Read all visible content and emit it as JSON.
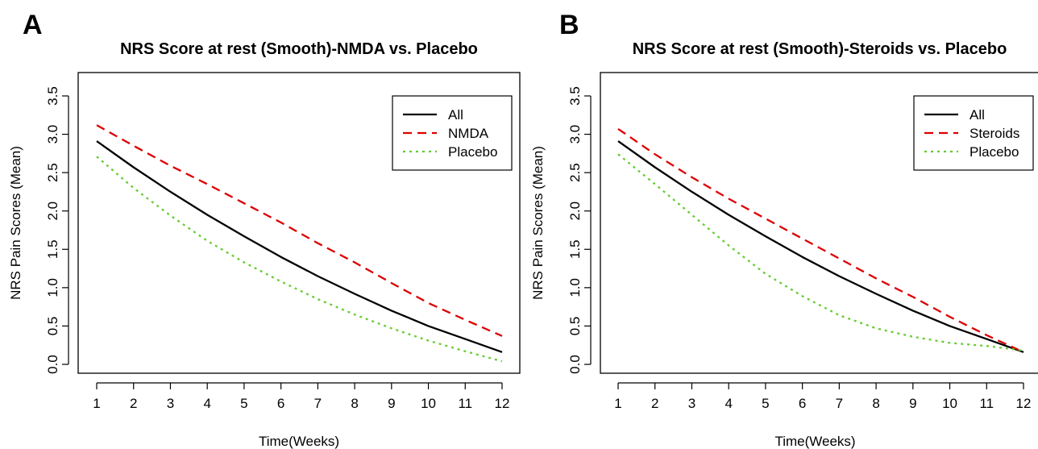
{
  "chart_data": [
    {
      "type": "line",
      "panel": "A",
      "title": "NRS Score at rest (Smooth)-NMDA vs. Placebo",
      "xlabel": "Time(Weeks)",
      "ylabel": "NRS Pain Scores (Mean)",
      "x": [
        1,
        2,
        3,
        4,
        5,
        6,
        7,
        8,
        9,
        10,
        11,
        12
      ],
      "xticks": [
        "1",
        "2",
        "3",
        "4",
        "5",
        "6",
        "7",
        "8",
        "9",
        "10",
        "11",
        "12"
      ],
      "yticks": [
        "0.0",
        "0.5",
        "1.0",
        "1.5",
        "2.0",
        "2.5",
        "3.0",
        "3.5"
      ],
      "ylim": [
        0,
        3.5
      ],
      "legend_position": "top-right",
      "series": [
        {
          "name": "All",
          "color": "#000000",
          "dash": "solid",
          "values": [
            2.91,
            2.57,
            2.25,
            1.95,
            1.67,
            1.4,
            1.15,
            0.92,
            0.7,
            0.5,
            0.33,
            0.16
          ]
        },
        {
          "name": "NMDA",
          "color": "#dd0000",
          "dash": "dashed",
          "values": [
            3.12,
            2.85,
            2.59,
            2.35,
            2.1,
            1.85,
            1.58,
            1.33,
            1.06,
            0.8,
            0.58,
            0.37
          ]
        },
        {
          "name": "Placebo",
          "color": "#66cc33",
          "dash": "dotted",
          "values": [
            2.71,
            2.3,
            1.94,
            1.61,
            1.33,
            1.08,
            0.85,
            0.65,
            0.47,
            0.31,
            0.17,
            0.04
          ]
        }
      ]
    },
    {
      "type": "line",
      "panel": "B",
      "title": "NRS Score at rest (Smooth)-Steroids vs. Placebo",
      "xlabel": "Time(Weeks)",
      "ylabel": "NRS Pain Scores (Mean)",
      "x": [
        1,
        2,
        3,
        4,
        5,
        6,
        7,
        8,
        9,
        10,
        11,
        12
      ],
      "xticks": [
        "1",
        "2",
        "3",
        "4",
        "5",
        "6",
        "7",
        "8",
        "9",
        "10",
        "11",
        "12"
      ],
      "yticks": [
        "0.0",
        "0.5",
        "1.0",
        "1.5",
        "2.0",
        "2.5",
        "3.0",
        "3.5"
      ],
      "ylim": [
        0,
        3.5
      ],
      "legend_position": "top-right",
      "series": [
        {
          "name": "All",
          "color": "#000000",
          "dash": "solid",
          "values": [
            2.91,
            2.57,
            2.25,
            1.95,
            1.67,
            1.4,
            1.15,
            0.92,
            0.7,
            0.5,
            0.33,
            0.16
          ]
        },
        {
          "name": "Steroids",
          "color": "#dd0000",
          "dash": "dashed",
          "values": [
            3.07,
            2.74,
            2.44,
            2.16,
            1.9,
            1.64,
            1.38,
            1.12,
            0.88,
            0.62,
            0.38,
            0.16
          ]
        },
        {
          "name": "Placebo",
          "color": "#66cc33",
          "dash": "dotted",
          "values": [
            2.74,
            2.35,
            1.95,
            1.55,
            1.18,
            0.89,
            0.64,
            0.47,
            0.36,
            0.28,
            0.24,
            0.18
          ]
        }
      ]
    }
  ]
}
